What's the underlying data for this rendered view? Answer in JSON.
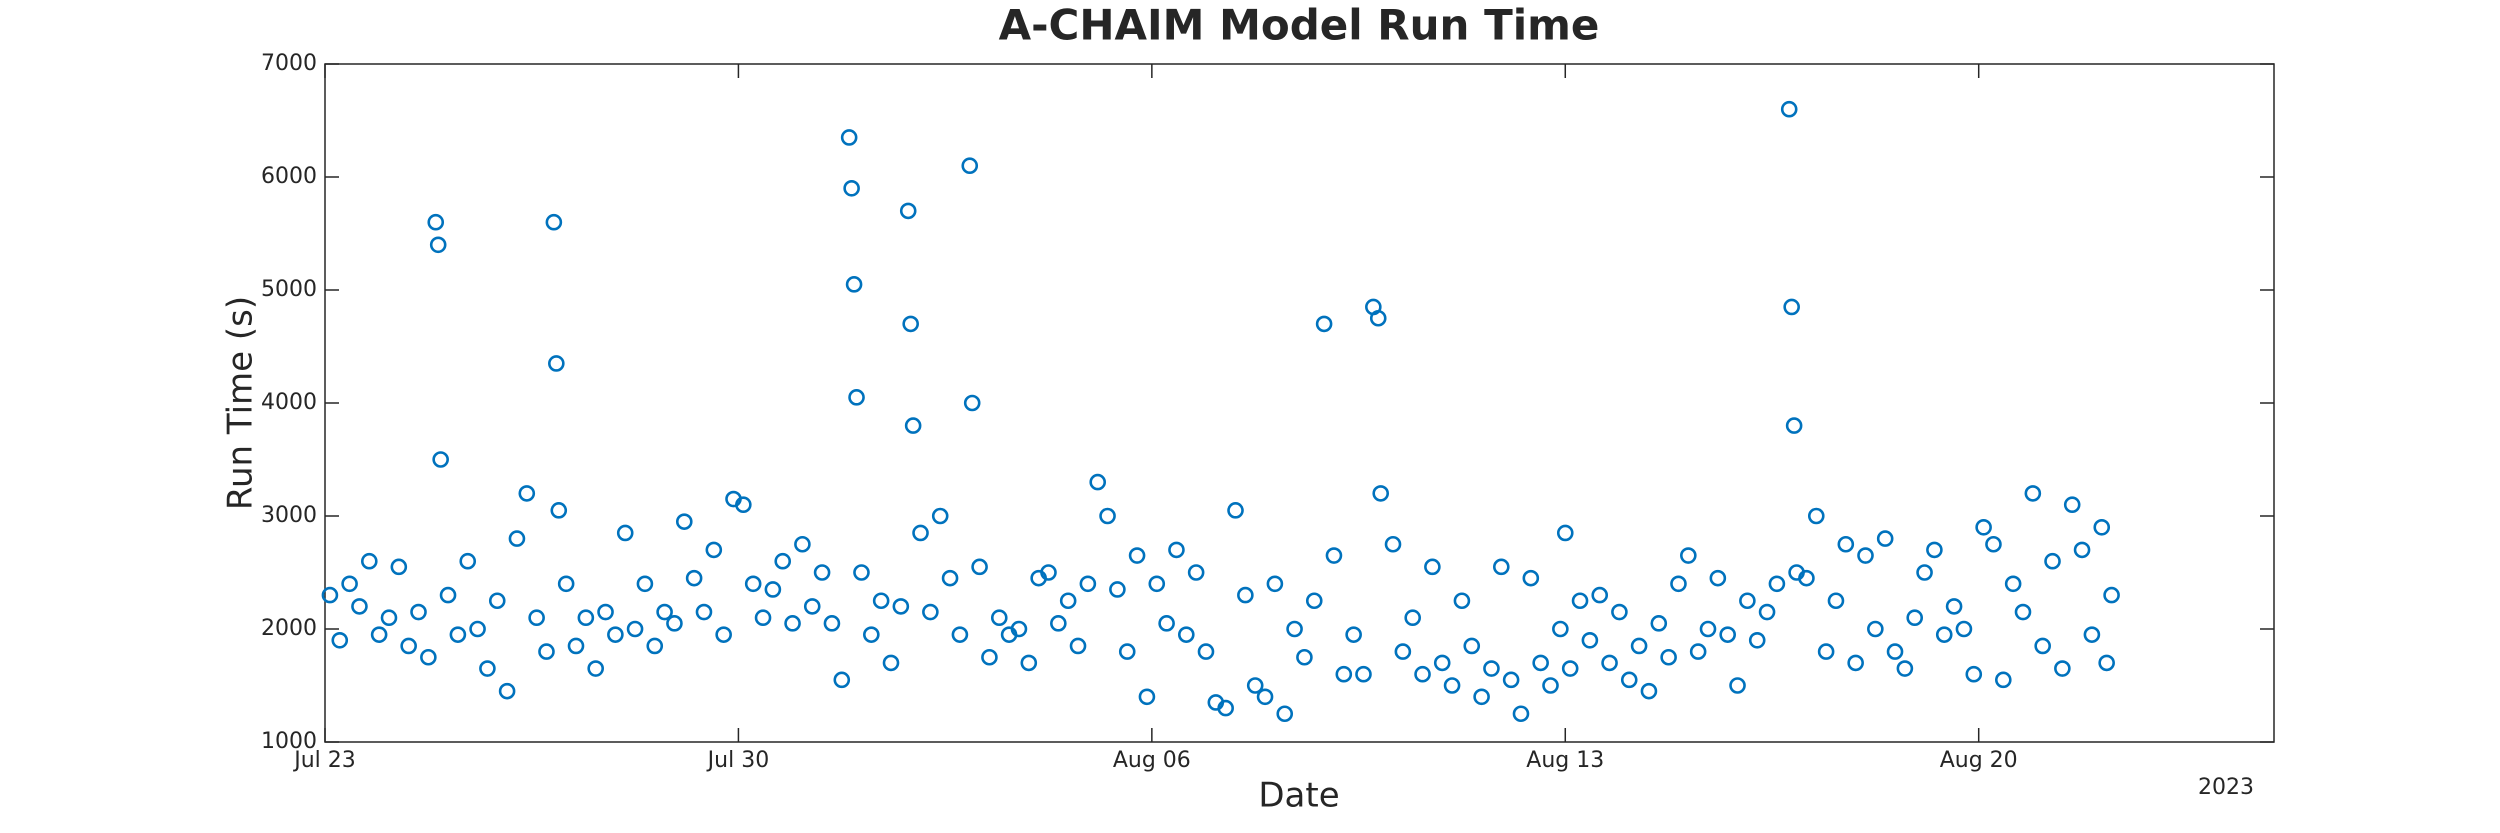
{
  "chart_data": {
    "type": "scatter",
    "title": "A-CHAIM Model Run Time",
    "xlabel": "Date",
    "ylabel": "Run Time (s)",
    "x_year_label": "2023",
    "color": "#0072BD",
    "marker": "open-circle",
    "grid": false,
    "xlim": [
      "2023-07-23T00:00",
      "2023-08-25T00:00"
    ],
    "xticks": [
      {
        "value": "2023-07-23T00:00",
        "label": "Jul 23"
      },
      {
        "value": "2023-07-30T00:00",
        "label": "Jul 30"
      },
      {
        "value": "2023-08-06T00:00",
        "label": "Aug 06"
      },
      {
        "value": "2023-08-13T00:00",
        "label": "Aug 13"
      },
      {
        "value": "2023-08-20T00:00",
        "label": "Aug 20"
      }
    ],
    "ylim": [
      1000,
      7000
    ],
    "yticks": [
      1000,
      2000,
      3000,
      4000,
      5000,
      6000,
      7000
    ],
    "x": [
      "2023-07-23T02:00",
      "2023-07-23T06:00",
      "2023-07-23T10:00",
      "2023-07-23T14:00",
      "2023-07-23T18:00",
      "2023-07-23T22:00",
      "2023-07-24T02:00",
      "2023-07-24T06:00",
      "2023-07-24T10:00",
      "2023-07-24T14:00",
      "2023-07-24T18:00",
      "2023-07-24T21:00",
      "2023-07-24T22:00",
      "2023-07-24T23:00",
      "2023-07-25T02:00",
      "2023-07-25T06:00",
      "2023-07-25T10:00",
      "2023-07-25T14:00",
      "2023-07-25T18:00",
      "2023-07-25T22:00",
      "2023-07-26T02:00",
      "2023-07-26T06:00",
      "2023-07-26T10:00",
      "2023-07-26T14:00",
      "2023-07-26T18:00",
      "2023-07-26T21:00",
      "2023-07-26T22:00",
      "2023-07-26T23:00",
      "2023-07-27T02:00",
      "2023-07-27T06:00",
      "2023-07-27T10:00",
      "2023-07-27T14:00",
      "2023-07-27T18:00",
      "2023-07-27T22:00",
      "2023-07-28T02:00",
      "2023-07-28T06:00",
      "2023-07-28T10:00",
      "2023-07-28T14:00",
      "2023-07-28T18:00",
      "2023-07-28T22:00",
      "2023-07-29T02:00",
      "2023-07-29T06:00",
      "2023-07-29T10:00",
      "2023-07-29T14:00",
      "2023-07-29T18:00",
      "2023-07-29T22:00",
      "2023-07-30T02:00",
      "2023-07-30T06:00",
      "2023-07-30T10:00",
      "2023-07-30T14:00",
      "2023-07-30T18:00",
      "2023-07-30T22:00",
      "2023-07-31T02:00",
      "2023-07-31T06:00",
      "2023-07-31T10:00",
      "2023-07-31T14:00",
      "2023-07-31T18:00",
      "2023-07-31T21:00",
      "2023-07-31T22:00",
      "2023-07-31T23:00",
      "2023-08-01T00:00",
      "2023-08-01T02:00",
      "2023-08-01T06:00",
      "2023-08-01T10:00",
      "2023-08-01T14:00",
      "2023-08-01T18:00",
      "2023-08-01T21:00",
      "2023-08-01T22:00",
      "2023-08-01T23:00",
      "2023-08-02T02:00",
      "2023-08-02T06:00",
      "2023-08-02T10:00",
      "2023-08-02T14:00",
      "2023-08-02T18:00",
      "2023-08-02T22:00",
      "2023-08-02T23:00",
      "2023-08-03T02:00",
      "2023-08-03T06:00",
      "2023-08-03T10:00",
      "2023-08-03T14:00",
      "2023-08-03T18:00",
      "2023-08-03T22:00",
      "2023-08-04T02:00",
      "2023-08-04T06:00",
      "2023-08-04T10:00",
      "2023-08-04T14:00",
      "2023-08-04T18:00",
      "2023-08-04T22:00",
      "2023-08-05T02:00",
      "2023-08-05T06:00",
      "2023-08-05T10:00",
      "2023-08-05T14:00",
      "2023-08-05T18:00",
      "2023-08-05T22:00",
      "2023-08-06T02:00",
      "2023-08-06T06:00",
      "2023-08-06T10:00",
      "2023-08-06T14:00",
      "2023-08-06T18:00",
      "2023-08-06T22:00",
      "2023-08-07T02:00",
      "2023-08-07T06:00",
      "2023-08-07T10:00",
      "2023-08-07T14:00",
      "2023-08-07T18:00",
      "2023-08-07T22:00",
      "2023-08-08T02:00",
      "2023-08-08T06:00",
      "2023-08-08T10:00",
      "2023-08-08T14:00",
      "2023-08-08T18:00",
      "2023-08-08T22:00",
      "2023-08-09T02:00",
      "2023-08-09T06:00",
      "2023-08-09T10:00",
      "2023-08-09T14:00",
      "2023-08-09T18:00",
      "2023-08-09T20:00",
      "2023-08-09T21:00",
      "2023-08-10T02:00",
      "2023-08-10T06:00",
      "2023-08-10T10:00",
      "2023-08-10T14:00",
      "2023-08-10T18:00",
      "2023-08-10T22:00",
      "2023-08-11T02:00",
      "2023-08-11T06:00",
      "2023-08-11T10:00",
      "2023-08-11T14:00",
      "2023-08-11T18:00",
      "2023-08-11T22:00",
      "2023-08-12T02:00",
      "2023-08-12T06:00",
      "2023-08-12T10:00",
      "2023-08-12T14:00",
      "2023-08-12T18:00",
      "2023-08-12T22:00",
      "2023-08-13T00:00",
      "2023-08-13T02:00",
      "2023-08-13T06:00",
      "2023-08-13T10:00",
      "2023-08-13T14:00",
      "2023-08-13T18:00",
      "2023-08-13T22:00",
      "2023-08-14T02:00",
      "2023-08-14T06:00",
      "2023-08-14T10:00",
      "2023-08-14T14:00",
      "2023-08-14T18:00",
      "2023-08-14T22:00",
      "2023-08-15T02:00",
      "2023-08-15T06:00",
      "2023-08-15T10:00",
      "2023-08-15T14:00",
      "2023-08-15T18:00",
      "2023-08-15T22:00",
      "2023-08-16T02:00",
      "2023-08-16T06:00",
      "2023-08-16T10:00",
      "2023-08-16T14:00",
      "2023-08-16T19:00",
      "2023-08-16T20:00",
      "2023-08-16T21:00",
      "2023-08-16T22:00",
      "2023-08-17T02:00",
      "2023-08-17T06:00",
      "2023-08-17T10:00",
      "2023-08-17T14:00",
      "2023-08-17T18:00",
      "2023-08-17T22:00",
      "2023-08-18T02:00",
      "2023-08-18T06:00",
      "2023-08-18T10:00",
      "2023-08-18T14:00",
      "2023-08-18T18:00",
      "2023-08-18T22:00",
      "2023-08-19T02:00",
      "2023-08-19T06:00",
      "2023-08-19T10:00",
      "2023-08-19T14:00",
      "2023-08-19T18:00",
      "2023-08-19T22:00",
      "2023-08-20T02:00",
      "2023-08-20T06:00",
      "2023-08-20T10:00",
      "2023-08-20T14:00",
      "2023-08-20T18:00",
      "2023-08-20T22:00",
      "2023-08-21T02:00",
      "2023-08-21T06:00",
      "2023-08-21T10:00",
      "2023-08-21T14:00",
      "2023-08-21T18:00",
      "2023-08-21T22:00",
      "2023-08-22T02:00",
      "2023-08-22T04:00",
      "2023-08-22T06:00"
    ],
    "values": [
      2300,
      1900,
      2400,
      2200,
      2600,
      1950,
      2100,
      2550,
      1850,
      2150,
      1750,
      5600,
      5400,
      3500,
      2300,
      1950,
      2600,
      2000,
      1650,
      2250,
      1450,
      2800,
      3200,
      2100,
      1800,
      5600,
      4350,
      3050,
      2400,
      1850,
      2100,
      1650,
      2150,
      1950,
      2850,
      2000,
      2400,
      1850,
      2150,
      2050,
      2950,
      2450,
      2150,
      2700,
      1950,
      3150,
      3100,
      2400,
      2100,
      2350,
      2600,
      2050,
      2750,
      2200,
      2500,
      2050,
      1550,
      6350,
      5900,
      5050,
      4050,
      2500,
      1950,
      2250,
      1700,
      2200,
      5700,
      4700,
      3800,
      2850,
      2150,
      3000,
      2450,
      1950,
      6100,
      4000,
      2550,
      1750,
      2100,
      1950,
      2000,
      1700,
      2450,
      2500,
      2050,
      2250,
      1850,
      2400,
      3300,
      3000,
      2350,
      1800,
      2650,
      1400,
      2400,
      2050,
      2700,
      1950,
      2500,
      1800,
      1350,
      1300,
      3050,
      2300,
      1500,
      1400,
      2400,
      1250,
      2000,
      1750,
      2250,
      4700,
      2650,
      1600,
      1950,
      1600,
      4850,
      4750,
      3200,
      2750,
      1800,
      2100,
      1600,
      2550,
      1700,
      1500,
      2250,
      1850,
      1400,
      1650,
      2550,
      1550,
      1250,
      2450,
      1700,
      1500,
      2000,
      2850,
      1650,
      2250,
      1900,
      2300,
      1700,
      2150,
      1550,
      1850,
      1450,
      2050,
      1750,
      2400,
      2650,
      1800,
      2000,
      2450,
      1950,
      1500,
      2250,
      1900,
      2150,
      2400,
      6600,
      4850,
      3800,
      2500,
      2450,
      3000,
      1800,
      2250,
      2750,
      1700,
      2650,
      2000,
      2800,
      1800,
      1650,
      2100,
      2500,
      2700,
      1950,
      2200,
      2000,
      1600,
      2900,
      2750,
      1550,
      2400,
      2150,
      3200,
      1850,
      2600,
      1650,
      3100,
      2700,
      1950,
      2900,
      1700,
      2300
    ]
  }
}
